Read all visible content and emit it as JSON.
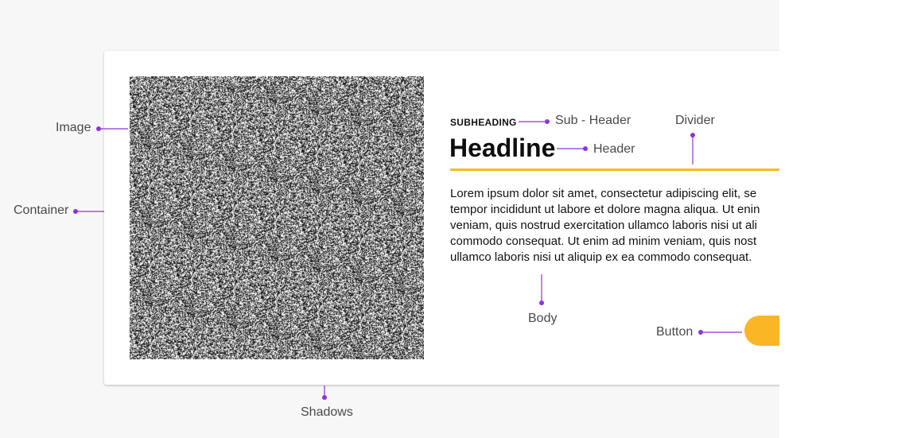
{
  "card": {
    "subheading": "SUBHEADING",
    "headline": "Headline",
    "body": "Lorem ipsum dolor sit amet, consectetur adipiscing elit, se\ntempor incididunt ut labore et dolore magna aliqua. Ut enin\nveniam, quis nostrud exercitation ullamco laboris nisi ut ali\ncommodo consequat.  Ut enim ad minim veniam, quis nost\nullamco laboris nisi ut aliquip ex ea commodo consequat."
  },
  "annotations": {
    "image": "Image",
    "container": "Container",
    "sub_header": "Sub - Header",
    "header": "Header",
    "divider": "Divider",
    "body": "Body",
    "button": "Button",
    "shadows": "Shadows"
  },
  "colors": {
    "accent": "#fbb626",
    "callout": "#8e33d6",
    "background": "#f7f7f7",
    "card": "#ffffff"
  }
}
